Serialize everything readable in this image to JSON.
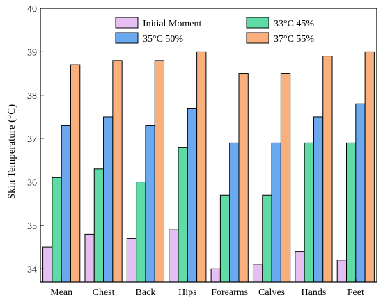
{
  "chart_data": {
    "type": "bar",
    "title": "",
    "xlabel": "",
    "ylabel": "Skin Temperature (°C)",
    "ylim": [
      33.7,
      40
    ],
    "yticks": [
      34,
      35,
      36,
      37,
      38,
      39,
      40
    ],
    "grid": false,
    "legend_position": "top",
    "categories": [
      "Mean",
      "Chest",
      "Back",
      "Hips",
      "Forearms",
      "Calves",
      "Hands",
      "Feet"
    ],
    "series": [
      {
        "name": "Initial Moment",
        "color": "#e5bff2",
        "values": [
          34.5,
          34.8,
          34.7,
          34.9,
          34.0,
          34.1,
          34.4,
          34.2
        ]
      },
      {
        "name": "33°C 45%",
        "color": "#5fdba6",
        "values": [
          36.1,
          36.3,
          36.0,
          36.8,
          35.7,
          35.7,
          36.9,
          36.9
        ]
      },
      {
        "name": "35°C 50%",
        "color": "#6aa8f0",
        "values": [
          37.3,
          37.5,
          37.3,
          37.7,
          36.9,
          36.9,
          37.5,
          37.8
        ]
      },
      {
        "name": "37°C 55%",
        "color": "#f9b07d",
        "values": [
          38.7,
          38.8,
          38.8,
          39.0,
          38.5,
          38.5,
          38.9,
          39.0
        ]
      }
    ],
    "legend_order": [
      0,
      2,
      1,
      3
    ]
  }
}
